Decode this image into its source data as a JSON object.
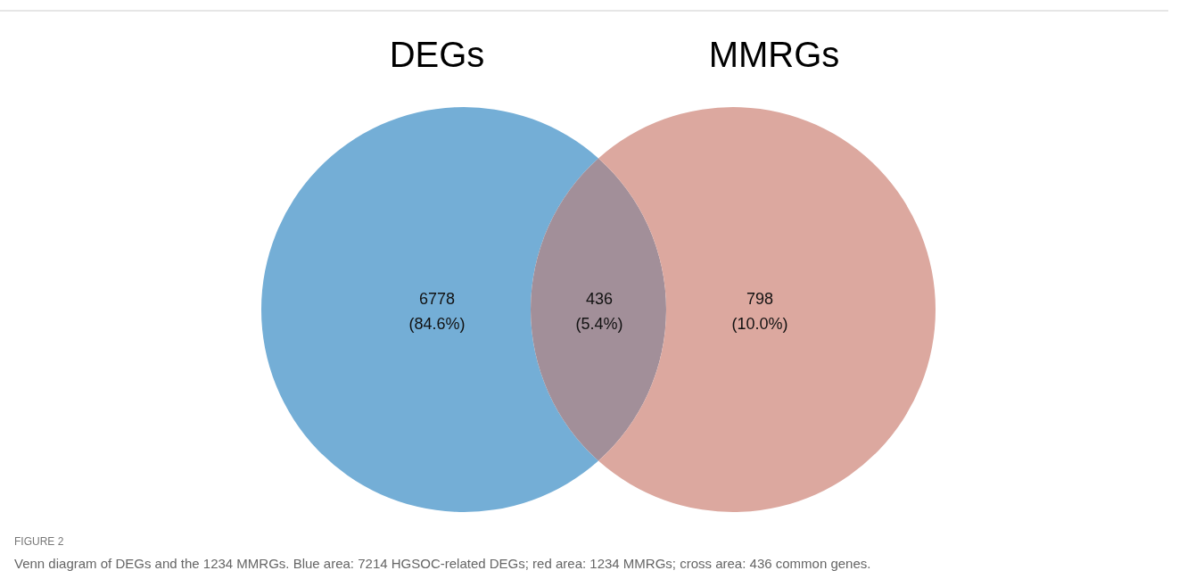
{
  "chart_data": {
    "type": "other",
    "categories": [
      null,
      null,
      null
    ],
    "values": [
      6778,
      436,
      798
    ],
    "colors": [
      "#74aed6",
      "#a28f99",
      "#dca89f"
    ],
    "data_labels": true,
    "annotations": [
      "DEGs",
      "MMRGs",
      "(84.6%)",
      "(5.4%)",
      "(10.0%)",
      "FIGURE 2",
      "Venn diagram of DEGs and the 1234 MMRGs. Blue area: 7214 HGSOC-related DEGs; red area: 1234 MMRGs; cross area: 436 common genes."
    ]
  }
}
